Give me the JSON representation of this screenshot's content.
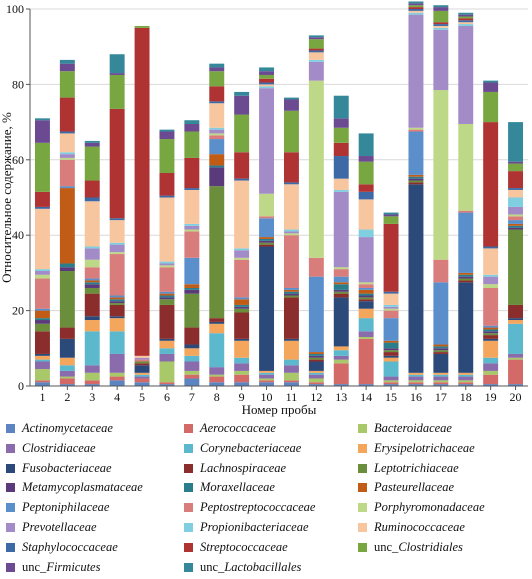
{
  "chart_data": {
    "type": "bar",
    "stacked": true,
    "title": "",
    "xlabel": "Номер пробы",
    "ylabel": "Относительное содержание, %",
    "ylim": [
      0,
      100
    ],
    "yticks": [
      0,
      20,
      40,
      60,
      80,
      100
    ],
    "categories": [
      "1",
      "2",
      "3",
      "4",
      "5",
      "6",
      "7",
      "8",
      "9",
      "10",
      "11",
      "12",
      "13",
      "14",
      "15",
      "16",
      "17",
      "18",
      "19",
      "20"
    ],
    "legend_placement": "bottom",
    "series": [
      {
        "name": "Actinomycetaceae",
        "color": "#5b84c1",
        "values": [
          1.0,
          0.5,
          0.5,
          1.5,
          1.0,
          0.5,
          2.0,
          1.0,
          1.0,
          1.0,
          1.0,
          0.5,
          0.5,
          0.5,
          0.5,
          0.5,
          0.5,
          0.5,
          0.5,
          0.5
        ]
      },
      {
        "name": "Aerococcaceae",
        "color": "#d46a68",
        "values": [
          0.5,
          1.5,
          1.0,
          1.0,
          1.0,
          0.5,
          1.0,
          1.5,
          2.0,
          0.5,
          0.5,
          0.5,
          5.5,
          12.0,
          0.5,
          0.5,
          0.5,
          0.5,
          2.5,
          6.5
        ]
      },
      {
        "name": "Bacteroidaceae",
        "color": "#a9c86a",
        "values": [
          3.0,
          0.5,
          2.0,
          1.0,
          0.0,
          5.5,
          1.0,
          0.5,
          1.0,
          0.5,
          2.0,
          1.0,
          1.0,
          0.5,
          0.5,
          0.5,
          0.5,
          0.5,
          1.0,
          0.5
        ]
      },
      {
        "name": "Clostridiaceae",
        "color": "#8a6bab",
        "values": [
          2.0,
          1.5,
          2.0,
          5.0,
          0.5,
          2.0,
          2.5,
          2.0,
          2.0,
          1.0,
          2.0,
          1.0,
          1.0,
          1.5,
          1.0,
          1.0,
          1.0,
          1.0,
          2.0,
          1.0
        ]
      },
      {
        "name": "Corynebacteriaceae",
        "color": "#5cb8cc",
        "values": [
          0.5,
          1.5,
          9.0,
          6.0,
          0.5,
          1.5,
          1.5,
          9.0,
          1.5,
          0.5,
          1.5,
          0.5,
          1.5,
          3.5,
          4.0,
          0.5,
          0.5,
          0.5,
          1.5,
          8.0
        ]
      },
      {
        "name": "Erysipelotrichaceae",
        "color": "#f4a65c",
        "values": [
          1.0,
          2.0,
          3.0,
          3.5,
          0.5,
          2.0,
          2.0,
          2.5,
          4.5,
          0.5,
          5.0,
          0.5,
          1.0,
          2.5,
          1.0,
          0.5,
          0.5,
          0.5,
          4.5,
          1.0
        ]
      },
      {
        "name": "Fusobacteriaceae",
        "color": "#2b4a7a",
        "values": [
          0.5,
          5.0,
          1.0,
          0.5,
          2.0,
          0.5,
          1.0,
          0.5,
          0.5,
          33.0,
          0.5,
          2.5,
          13.0,
          2.0,
          0.5,
          50.0,
          5.0,
          24.0,
          0.5,
          0.5
        ]
      },
      {
        "name": "Lachnospiraceae",
        "color": "#8c2d2d",
        "values": [
          6.0,
          3.0,
          6.0,
          3.0,
          0.5,
          9.0,
          4.5,
          1.0,
          7.0,
          0.5,
          11.0,
          0.5,
          1.0,
          0.5,
          1.0,
          0.5,
          0.5,
          0.5,
          1.0,
          3.5
        ]
      },
      {
        "name": "Leptotrichiaceae",
        "color": "#6a8e3c",
        "values": [
          2.0,
          15.0,
          1.5,
          0.5,
          0.5,
          1.5,
          9.0,
          35.0,
          1.0,
          0.5,
          0.5,
          0.5,
          0.5,
          0.5,
          0.5,
          0.5,
          0.5,
          0.5,
          0.5,
          20.0
        ]
      },
      {
        "name": "Metamycoplasmataceae",
        "color": "#5a3a7a",
        "values": [
          1.0,
          1.0,
          1.0,
          0.5,
          0.0,
          0.5,
          1.0,
          5.0,
          0.5,
          0.5,
          0.5,
          0.5,
          0.5,
          0.5,
          0.5,
          0.5,
          0.5,
          0.5,
          0.5,
          0.5
        ]
      },
      {
        "name": "Moraxellaceae",
        "color": "#2a7e8c",
        "values": [
          0.5,
          1.0,
          0.5,
          0.5,
          0.0,
          0.5,
          0.5,
          0.5,
          0.5,
          0.5,
          0.5,
          0.5,
          1.5,
          0.5,
          1.5,
          0.5,
          0.5,
          0.5,
          0.5,
          0.5
        ]
      },
      {
        "name": "Pasteurellaceae",
        "color": "#c05c16",
        "values": [
          2.0,
          20.0,
          0.5,
          0.5,
          0.0,
          0.5,
          1.0,
          3.0,
          1.5,
          0.5,
          0.5,
          0.5,
          0.5,
          1.0,
          0.5,
          0.5,
          0.5,
          0.5,
          0.5,
          0.5
        ]
      },
      {
        "name": "Peptoniphilaceae",
        "color": "#5a8fcc",
        "values": [
          0.5,
          0.5,
          0.5,
          0.5,
          0.0,
          0.5,
          7.0,
          4.0,
          0.5,
          5.0,
          0.5,
          20.0,
          1.5,
          0.5,
          6.0,
          11.5,
          16.5,
          16.0,
          0.5,
          1.0
        ]
      },
      {
        "name": "Peptostreptococcaceae",
        "color": "#d97c7c",
        "values": [
          8.0,
          7.0,
          3.0,
          11.0,
          0.5,
          6.5,
          7.0,
          1.0,
          10.0,
          0.5,
          14.0,
          5.0,
          2.0,
          1.0,
          2.0,
          0.5,
          6.0,
          0.5,
          10.0,
          1.0
        ]
      },
      {
        "name": "Porphyromonadaceae",
        "color": "#bdd887",
        "values": [
          1.0,
          0.5,
          2.0,
          0.5,
          0.0,
          0.5,
          0.5,
          0.5,
          0.5,
          6.0,
          0.5,
          47.0,
          0.5,
          0.5,
          0.5,
          0.5,
          45.0,
          23.0,
          1.0,
          0.5
        ]
      },
      {
        "name": "Prevotellaceae",
        "color": "#a38bc7",
        "values": [
          1.0,
          1.0,
          3.0,
          2.0,
          0.5,
          0.5,
          1.0,
          1.0,
          2.0,
          28.0,
          0.5,
          5.0,
          20.0,
          12.0,
          0.5,
          30.0,
          16.0,
          26.0,
          2.0,
          2.0
        ]
      },
      {
        "name": "Propionibacteriaceae",
        "color": "#7fcfe0",
        "values": [
          0.5,
          0.5,
          0.5,
          0.5,
          0.0,
          0.5,
          0.5,
          0.5,
          0.5,
          0.5,
          0.5,
          0.5,
          0.5,
          2.0,
          0.5,
          0.5,
          0.5,
          0.5,
          0.5,
          2.5
        ]
      },
      {
        "name": "Ruminococcaceae",
        "color": "#f8c69e",
        "values": [
          16.0,
          5.0,
          12.0,
          6.0,
          0.5,
          17.0,
          9.0,
          6.5,
          18.0,
          0.5,
          12.0,
          2.0,
          3.0,
          8.0,
          3.0,
          0.5,
          0.5,
          0.5,
          7.0,
          2.0
        ]
      },
      {
        "name": "Staphylococcaceae",
        "color": "#3d6aa6",
        "values": [
          0.5,
          0.5,
          1.0,
          0.5,
          0.0,
          0.5,
          0.5,
          0.5,
          0.5,
          0.5,
          0.5,
          0.5,
          6.0,
          2.0,
          0.5,
          0.5,
          0.5,
          0.5,
          0.5,
          0.5
        ]
      },
      {
        "name": "Streptococcaceae",
        "color": "#b03333",
        "values": [
          4.0,
          9.0,
          4.5,
          29.0,
          87.0,
          6.0,
          8.0,
          4.0,
          7.0,
          1.0,
          8.0,
          0.5,
          3.5,
          2.0,
          18.0,
          0.5,
          0.5,
          0.5,
          33.0,
          4.5
        ]
      },
      {
        "name": "unc_Clostridiales",
        "color": "#78a640",
        "values": [
          13.0,
          7.0,
          9.0,
          9.0,
          0.5,
          9.0,
          7.0,
          4.0,
          10.0,
          1.0,
          11.0,
          2.5,
          4.0,
          6.0,
          2.0,
          0.5,
          3.0,
          0.5,
          8.0,
          2.0
        ]
      },
      {
        "name": "unc_Firmicutes",
        "color": "#6b4a91",
        "values": [
          6.0,
          2.0,
          1.0,
          0.5,
          0.0,
          2.0,
          2.0,
          1.0,
          5.0,
          1.0,
          3.0,
          0.5,
          2.5,
          1.5,
          0.5,
          0.5,
          1.0,
          0.5,
          2.5,
          0.5
        ]
      },
      {
        "name": "unc_Lactobacillales",
        "color": "#35889a",
        "values": [
          0.5,
          1.0,
          0.5,
          5.0,
          0.0,
          0.5,
          1.0,
          1.0,
          1.0,
          1.0,
          0.5,
          0.5,
          6.0,
          6.0,
          0.5,
          0.5,
          0.5,
          0.5,
          0.5,
          10.5
        ]
      }
    ]
  }
}
